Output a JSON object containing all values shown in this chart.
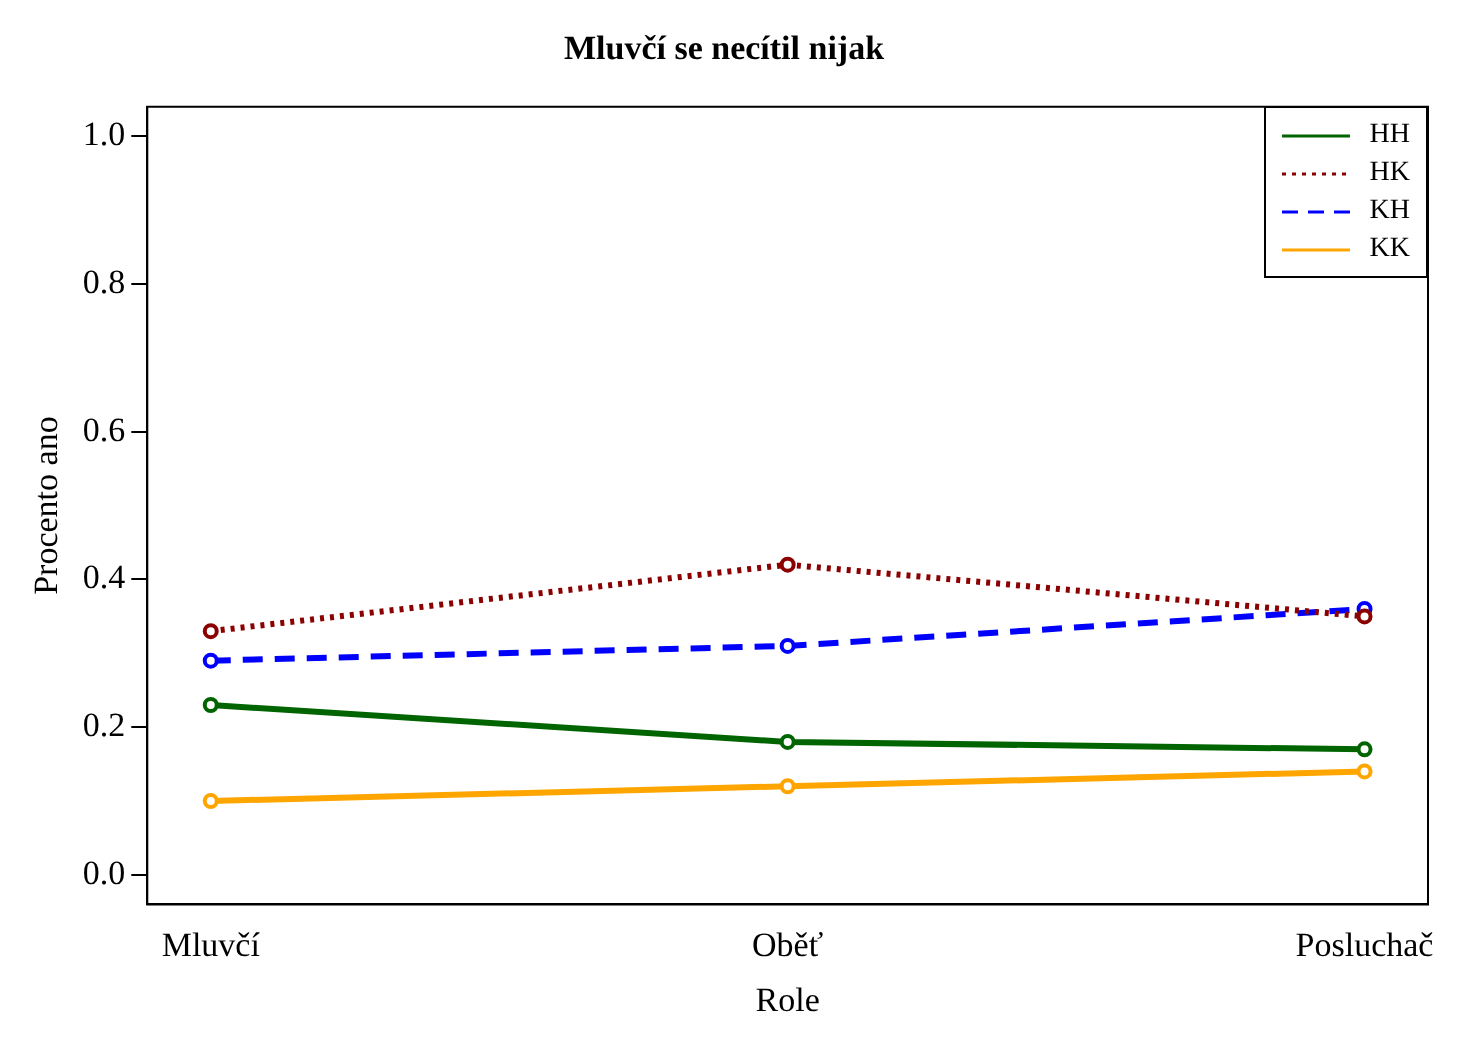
{
  "chart_data": {
    "type": "line",
    "title": "Mluvčí se necítil nijak",
    "xlabel": "Role",
    "ylabel": "Procento ano",
    "categories": [
      "Mluvčí",
      "Oběť",
      "Posluchač"
    ],
    "series": [
      {
        "name": "HH",
        "color": "#006400",
        "values": [
          0.23,
          0.18,
          0.17
        ],
        "line_style": "solid"
      },
      {
        "name": "HK",
        "color": "#8b0000",
        "values": [
          0.33,
          0.42,
          0.35
        ],
        "line_style": "dotted"
      },
      {
        "name": "KH",
        "color": "#0000ff",
        "values": [
          0.29,
          0.31,
          0.36
        ],
        "line_style": "dashed"
      },
      {
        "name": "KK",
        "color": "#ffa500",
        "values": [
          0.1,
          0.12,
          0.14
        ],
        "line_style": "solid"
      }
    ],
    "ylim": [
      -0.04,
      1.04
    ],
    "yticks": [
      {
        "value": 0,
        "label": "0.0"
      },
      {
        "value": 0.2,
        "label": "0.2"
      },
      {
        "value": 0.4,
        "label": "0.4"
      },
      {
        "value": 0.6,
        "label": "0.6"
      },
      {
        "value": 0.8,
        "label": "0.8"
      },
      {
        "value": 1,
        "label": "1.0"
      }
    ],
    "marker": "circle",
    "grid": false,
    "legend": "top right"
  }
}
